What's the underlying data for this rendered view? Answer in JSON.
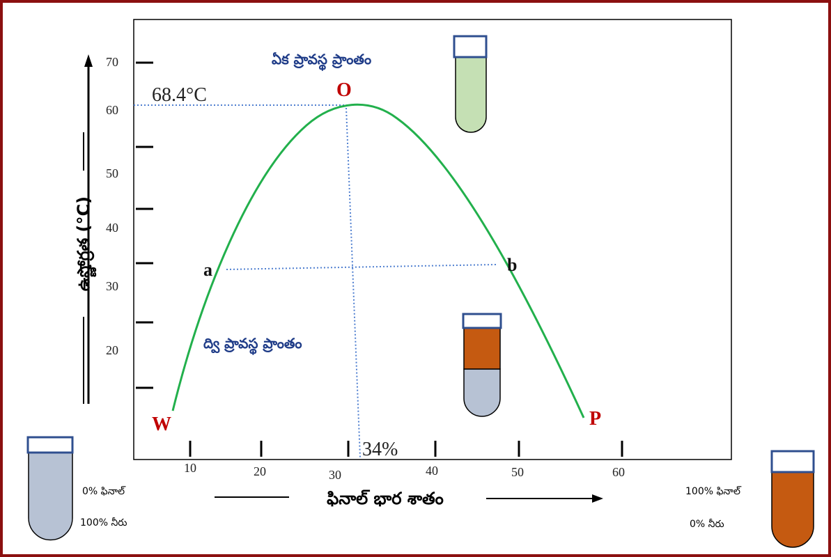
{
  "diagram": {
    "y_axis": {
      "label": "ఉష్ణోగ్రత (°C)",
      "ticks": [
        "70",
        "60",
        "50",
        "40",
        "30",
        "20"
      ]
    },
    "x_axis": {
      "label": "ఫినాల్ భార శాతం",
      "ticks": [
        "10",
        "20",
        "30",
        "40",
        "50",
        "60"
      ]
    },
    "critical_temperature": "68.4°C",
    "critical_composition": "34%",
    "points": {
      "o": "O",
      "w": "W",
      "p": "P",
      "a": "a",
      "b": "b"
    },
    "regions": {
      "one_phase": "ఏక ప్రావస్థ ప్రాంతం",
      "two_phase": "ద్వి ప్రావస్థ ప్రాంతం"
    },
    "left_tube": {
      "line1": "0% ఫినాల్",
      "line2": "100% నీరు"
    },
    "right_tube": {
      "line1": "100% ఫినాల్",
      "line2": "0% నీరు"
    }
  }
}
